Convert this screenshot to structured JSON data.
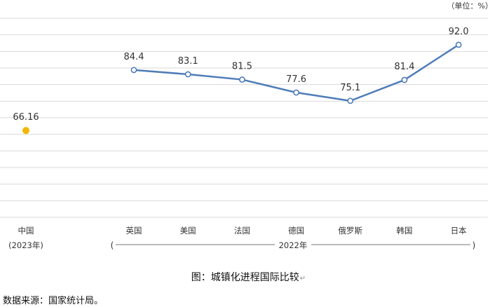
{
  "unit_label": "（单位：%）",
  "caption": "图：城镇化进程国际比较",
  "source": "数据来源：国家统计局。",
  "colors": {
    "line": "#4f7cb8",
    "highlight_point": "#f2b705",
    "grid": "#d9d9d9",
    "text": "#333333"
  },
  "chart_data": {
    "type": "line",
    "title": "",
    "xlabel": "",
    "ylabel": "",
    "ylim": [
      40,
      100
    ],
    "grid": true,
    "legend": "none",
    "highlight": {
      "category": "中国",
      "sublabel": "(2023年)",
      "value": 66.16,
      "label": "66.16"
    },
    "categories": [
      "英国",
      "美国",
      "法国",
      "德国",
      "俄罗斯",
      "韩国",
      "日本"
    ],
    "series": [
      {
        "values": [
          84.4,
          83.1,
          81.5,
          77.6,
          75.1,
          81.4,
          92.0
        ],
        "labels": [
          "84.4",
          "83.1",
          "81.5",
          "77.6",
          "75.1",
          "81.4",
          "92.0"
        ]
      }
    ],
    "group_bracket": {
      "label": "2022年",
      "open": "(",
      "close": ")"
    }
  }
}
